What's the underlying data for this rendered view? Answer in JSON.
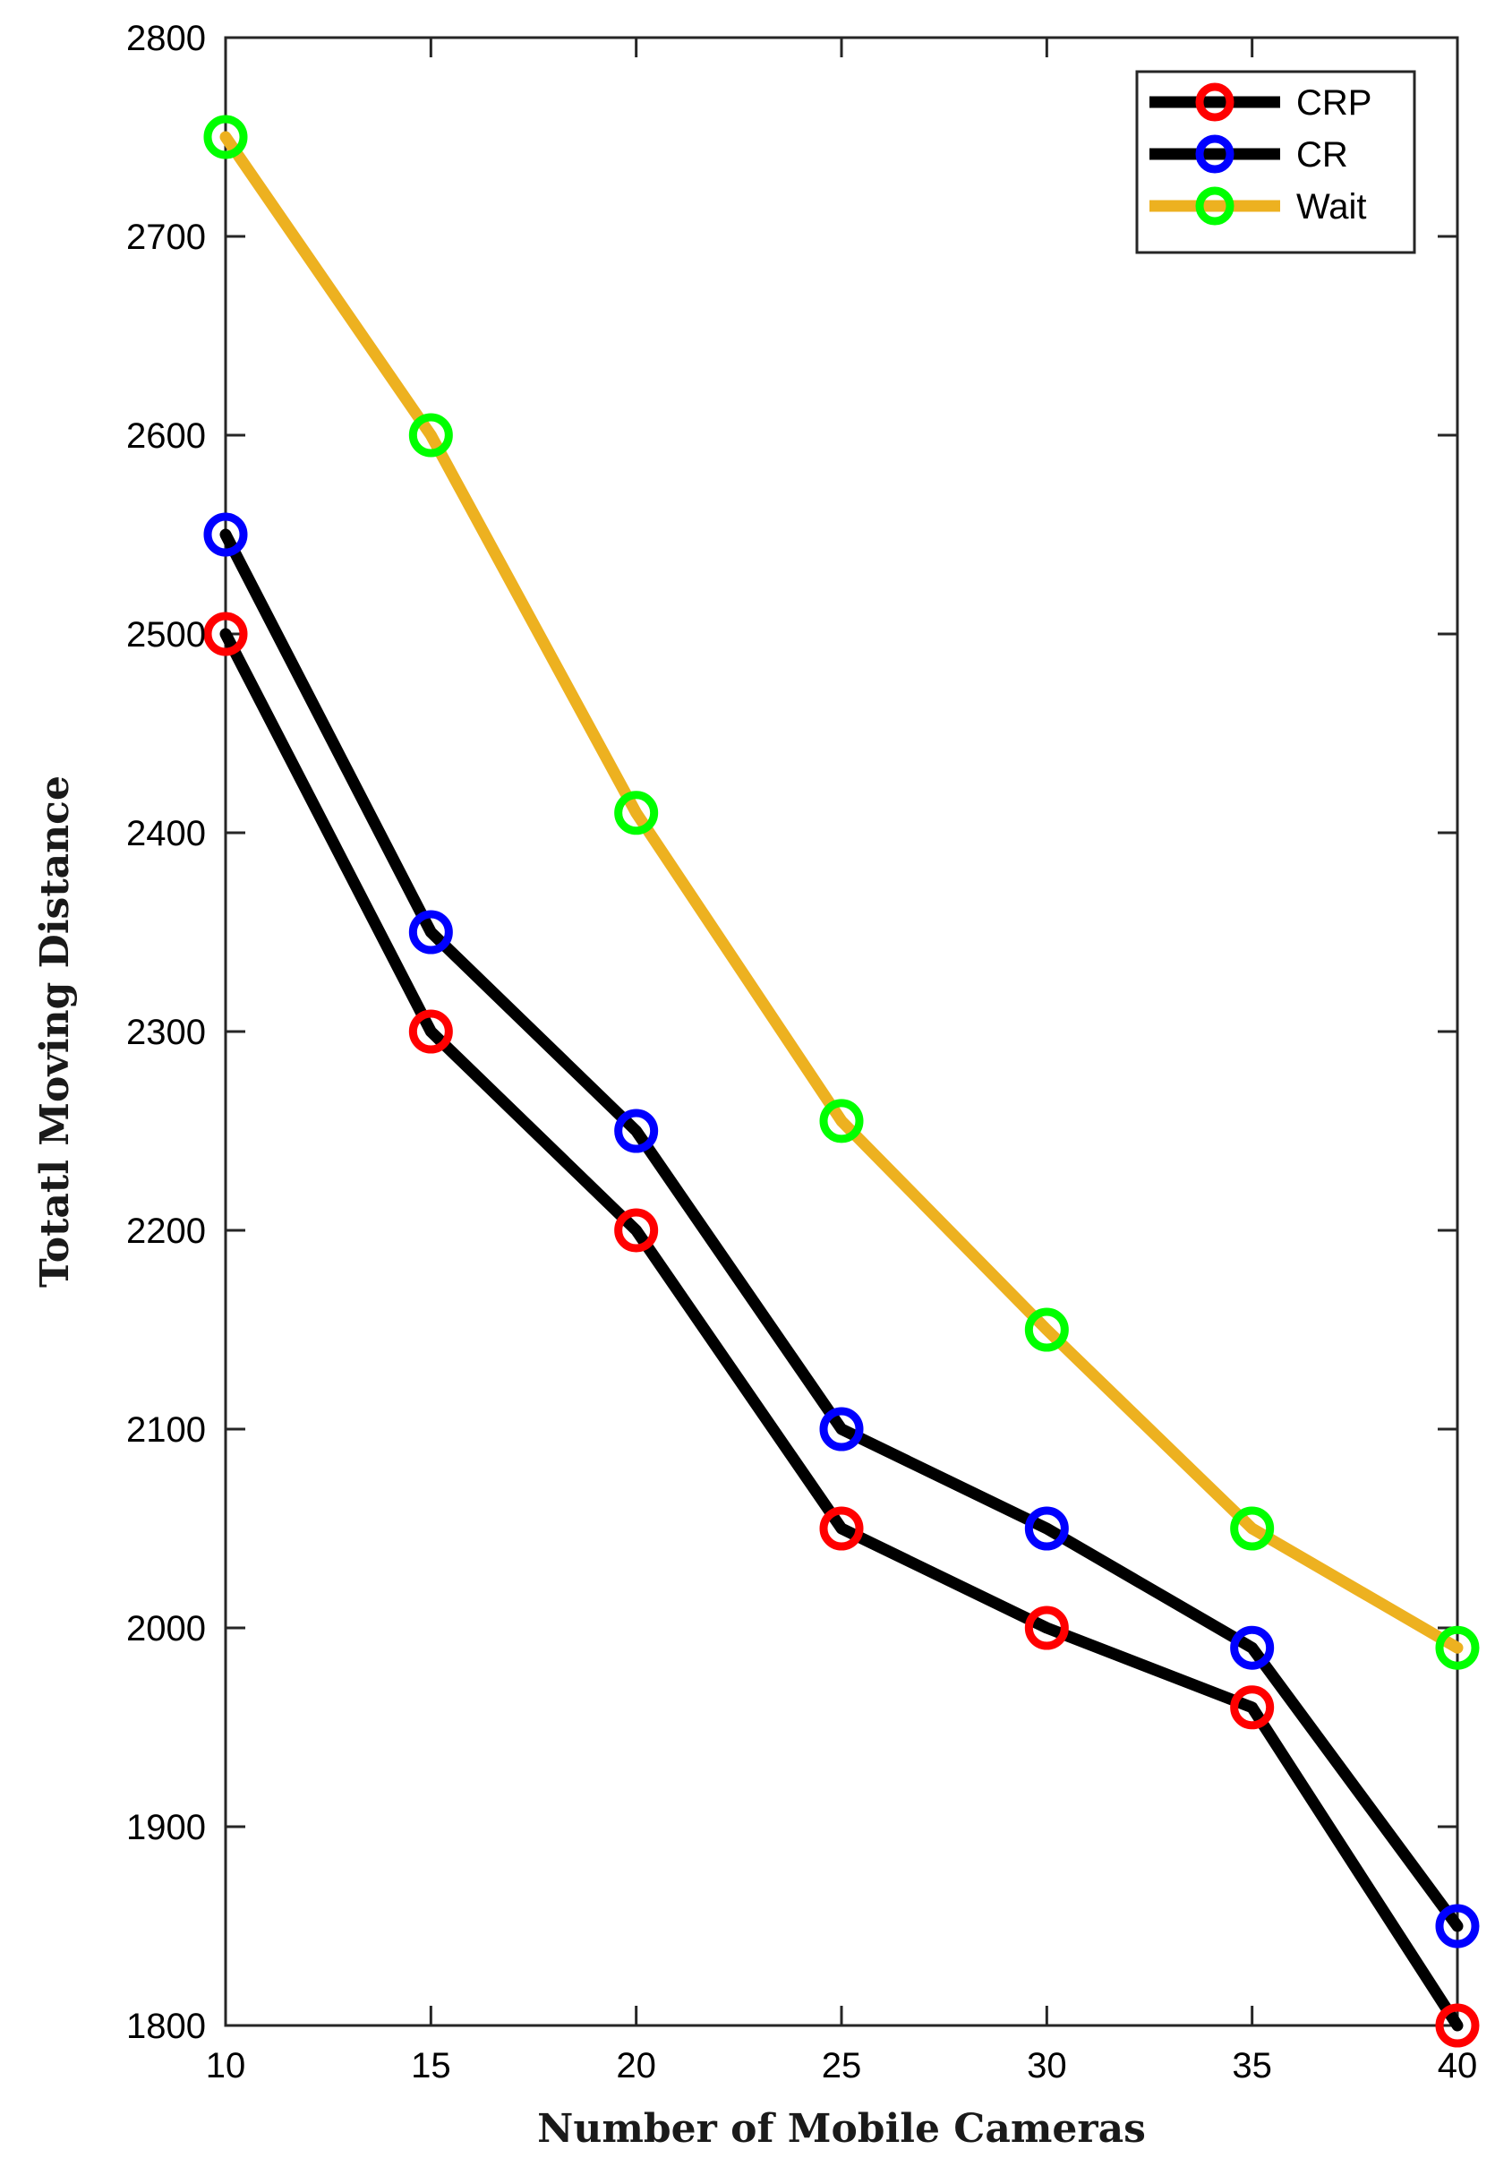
{
  "chart_data": {
    "type": "line",
    "title": "",
    "xlabel": "Number of Mobile Cameras",
    "ylabel": "Totatl Moving Distance",
    "x": [
      10,
      15,
      20,
      25,
      30,
      35,
      40
    ],
    "xlim": [
      10,
      40
    ],
    "ylim": [
      1800,
      2800
    ],
    "xticks": [
      10,
      15,
      20,
      25,
      30,
      35,
      40
    ],
    "yticks": [
      1800,
      1900,
      2000,
      2100,
      2200,
      2300,
      2400,
      2500,
      2600,
      2700,
      2800
    ],
    "grid": false,
    "legend_position": "top-right",
    "series": [
      {
        "name": "CRP",
        "line_color": "#000000",
        "marker_color": "#ff0000",
        "values": [
          2500,
          2300,
          2200,
          2050,
          2000,
          1960,
          1800
        ]
      },
      {
        "name": "CR",
        "line_color": "#000000",
        "marker_color": "#0000ff",
        "values": [
          2550,
          2350,
          2250,
          2100,
          2050,
          1990,
          1850
        ]
      },
      {
        "name": "Wait",
        "line_color": "#edb120",
        "marker_color": "#00ff00",
        "values": [
          2750,
          2600,
          2410,
          2255,
          2150,
          2050,
          1990
        ]
      }
    ]
  }
}
